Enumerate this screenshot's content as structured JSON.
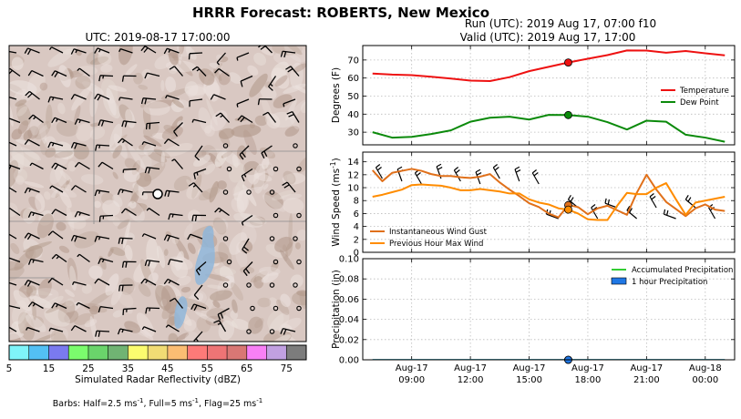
{
  "page": {
    "title": "HRRR Forecast: ROBERTS, New Mexico"
  },
  "map": {
    "title": "UTC: 2019-08-17 17:00:00",
    "colorbar": {
      "label": "Simulated Radar Reflectivity (dBZ)",
      "ticks": [
        "5",
        "15",
        "25",
        "35",
        "45",
        "55",
        "65",
        "75"
      ],
      "colors": [
        "#7ff4f9",
        "#53c0f4",
        "#7a7aef",
        "#7bfc6d",
        "#6ad46b",
        "#70b473",
        "#fbfc6f",
        "#f1dc74",
        "#fbbd73",
        "#fd7a78",
        "#ee7475",
        "#d97774",
        "#f880f6",
        "#c1a0e1",
        "#7c7c7c"
      ]
    },
    "barb_note": "Barbs: Half=2.5 ms",
    "barb_note_sup1": "-1",
    "barb_note_mid": ", Full=5 ms",
    "barb_note_sup2": "-1",
    "barb_note_end": ", Flag=25 ms",
    "barb_note_sup3": "-1"
  },
  "run_header": {
    "line1": "Run (UTC): 2019 Aug 17, 07:00 f10",
    "line2": "Valid (UTC): 2019 Aug 17, 17:00"
  },
  "chart_data": [
    {
      "type": "line",
      "panel": "temperature",
      "ylabel": "Degrees (F)",
      "ylim": [
        23,
        78
      ],
      "yticks": [
        "30",
        "40",
        "50",
        "60",
        "70"
      ],
      "grid": true,
      "legend_placement": "right",
      "valid_hour": 17,
      "x": [
        7,
        8,
        9,
        10,
        11,
        12,
        13,
        14,
        15,
        16,
        17,
        18,
        19,
        20,
        21,
        22,
        23,
        24,
        25
      ],
      "series": [
        {
          "name": "Temperature",
          "color": "#ee1111",
          "values": [
            62.5,
            61.9,
            61.6,
            60.7,
            59.7,
            58.6,
            58.3,
            60.5,
            63.8,
            66.2,
            68.6,
            70.7,
            72.7,
            75.3,
            75.2,
            74.0,
            75.0,
            73.7,
            72.6
          ]
        },
        {
          "name": "Dew Point",
          "color": "#0b8a0b",
          "values": [
            30.0,
            27.0,
            27.4,
            29.0,
            31.0,
            35.8,
            38.0,
            38.6,
            37.0,
            39.6,
            39.5,
            38.6,
            35.6,
            31.5,
            36.4,
            35.8,
            28.6,
            27.0,
            24.7
          ]
        }
      ]
    },
    {
      "type": "line",
      "panel": "wind",
      "ylabel": "Wind Speed (ms",
      "ylabel_sup": "-1",
      "ylabel_end": ")",
      "ylim": [
        0,
        15.5
      ],
      "yticks": [
        "0",
        "2",
        "4",
        "6",
        "8",
        "10",
        "12",
        "14"
      ],
      "grid": true,
      "legend_placement": "bottom-left",
      "valid_hour": 17,
      "x": [
        7,
        7.5,
        8,
        8.5,
        9,
        9.5,
        10,
        10.5,
        11,
        11.5,
        12,
        12.5,
        13,
        13.5,
        14,
        14.5,
        15,
        15.5,
        16,
        16.5,
        17,
        17.5,
        18,
        18.5,
        19,
        19.5,
        20,
        20.5,
        21,
        21.5,
        22,
        22.5,
        23,
        23.5,
        24,
        24.5,
        25
      ],
      "series": [
        {
          "name": "Instantaneous Wind Gust",
          "color": "#e0701a",
          "values": [
            12.7,
            11.0,
            12.3,
            12.6,
            12.9,
            12.6,
            12.1,
            11.8,
            11.8,
            11.6,
            11.5,
            11.7,
            12.1,
            10.8,
            9.7,
            8.7,
            7.6,
            7.0,
            6.0,
            5.4,
            7.3,
            7.0,
            5.9,
            6.8,
            7.2,
            6.5,
            5.8,
            9.2,
            12.0,
            9.7,
            7.8,
            6.7,
            5.6,
            6.8,
            7.4,
            6.6,
            6.4
          ]
        },
        {
          "name": "Previous Hour Max Wind",
          "color": "#ff8c00",
          "values": [
            8.6,
            8.9,
            9.3,
            9.7,
            10.4,
            10.5,
            10.4,
            10.3,
            10.0,
            9.6,
            9.6,
            9.8,
            9.6,
            9.4,
            9.1,
            9.1,
            8.2,
            7.7,
            7.4,
            6.8,
            6.6,
            6.0,
            5.1,
            5.0,
            5.0,
            7.2,
            9.2,
            9.0,
            9.0,
            10.0,
            10.7,
            8.2,
            5.8,
            7.7,
            8.0,
            8.3,
            8.6
          ]
        }
      ]
    },
    {
      "type": "area",
      "panel": "precipitation",
      "ylabel": "Precipitation (in)",
      "ylim": [
        0,
        0.1
      ],
      "yticks": [
        "0.00",
        "0.02",
        "0.04",
        "0.06",
        "0.08",
        "0.10"
      ],
      "grid": true,
      "legend_placement": "top-right",
      "valid_hour": 17,
      "x": [
        7,
        8,
        9,
        10,
        11,
        12,
        13,
        14,
        15,
        16,
        17,
        18,
        19,
        20,
        21,
        22,
        23,
        24,
        25
      ],
      "series": [
        {
          "name": "Accumulated Precipitation",
          "color": "#33cc33",
          "values": [
            0,
            0,
            0,
            0,
            0,
            0,
            0,
            0,
            0,
            0,
            0,
            0,
            0,
            0,
            0,
            0,
            0,
            0,
            0
          ]
        },
        {
          "name": "1 hour Precipitation",
          "color": "#1f77e4",
          "values": [
            0,
            0,
            0,
            0,
            0,
            0,
            0,
            0,
            0,
            0,
            0,
            0,
            0,
            0,
            0,
            0,
            0,
            0,
            0
          ]
        }
      ]
    }
  ],
  "x_axis": {
    "ticks": [
      {
        "hour": 9,
        "date": "Aug-17",
        "time": "09:00"
      },
      {
        "hour": 12,
        "date": "Aug-17",
        "time": "12:00"
      },
      {
        "hour": 15,
        "date": "Aug-17",
        "time": "15:00"
      },
      {
        "hour": 18,
        "date": "Aug-17",
        "time": "18:00"
      },
      {
        "hour": 21,
        "date": "Aug-17",
        "time": "21:00"
      },
      {
        "hour": 24,
        "date": "Aug-18",
        "time": "00:00"
      }
    ]
  }
}
